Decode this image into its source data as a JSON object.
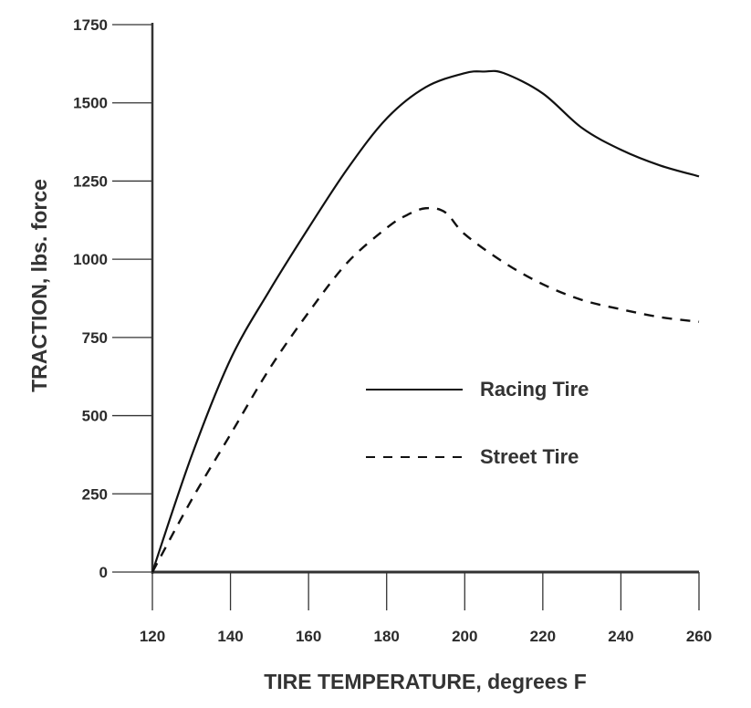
{
  "chart_data": {
    "type": "line",
    "title": "",
    "xlabel": "TIRE TEMPERATURE, degrees F",
    "ylabel": "TRACTION, lbs. force",
    "xlim": [
      120,
      260
    ],
    "ylim": [
      0,
      1750
    ],
    "xticks": [
      120,
      140,
      160,
      180,
      200,
      220,
      240,
      260
    ],
    "yticks": [
      0,
      250,
      500,
      750,
      1000,
      1250,
      1500,
      1750
    ],
    "xtick_labels": [
      "120",
      "140",
      "160",
      "180",
      "200",
      "220",
      "240",
      "260"
    ],
    "ytick_labels": [
      "0",
      "250",
      "500",
      "750",
      "1000",
      "1250",
      "1500",
      "1750"
    ],
    "grid": false,
    "legend_position": "center-right",
    "series": [
      {
        "name": "Racing Tire",
        "style": "solid",
        "color": "#111111",
        "x": [
          120,
          130,
          140,
          150,
          160,
          170,
          180,
          190,
          200,
          205,
          210,
          220,
          230,
          240,
          250,
          260
        ],
        "y": [
          0,
          370,
          680,
          900,
          1100,
          1290,
          1450,
          1550,
          1595,
          1600,
          1595,
          1530,
          1420,
          1350,
          1300,
          1265
        ]
      },
      {
        "name": "Street Tire",
        "style": "dashed",
        "color": "#111111",
        "x": [
          120,
          130,
          140,
          150,
          160,
          170,
          180,
          185,
          190,
          195,
          200,
          210,
          220,
          230,
          240,
          250,
          260
        ],
        "y": [
          0,
          230,
          440,
          650,
          830,
          990,
          1100,
          1140,
          1163,
          1150,
          1080,
          990,
          920,
          870,
          840,
          815,
          800
        ]
      }
    ]
  }
}
